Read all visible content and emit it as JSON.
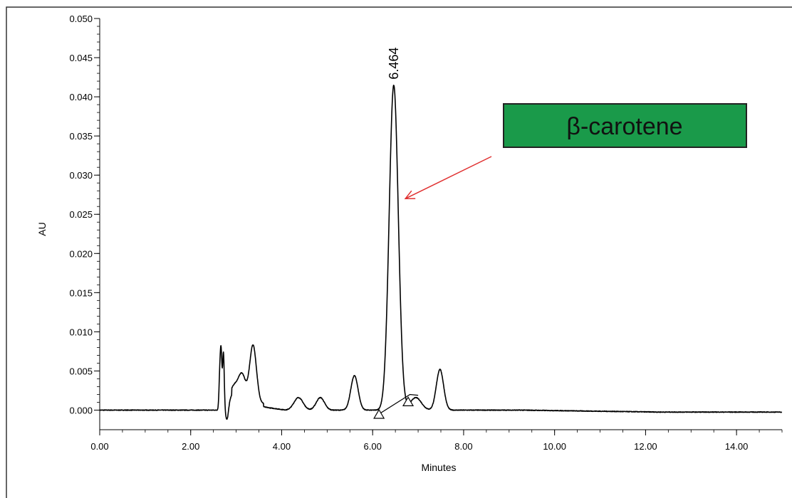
{
  "chart_data": {
    "type": "line",
    "xlabel": "Minutes",
    "ylabel": "AU",
    "xlim": [
      0,
      15
    ],
    "ylim": [
      -0.0025,
      0.05
    ],
    "x_ticks": [
      0,
      2,
      4,
      6,
      8,
      10,
      12,
      14
    ],
    "x_tick_labels": [
      "0.00",
      "2.00",
      "4.00",
      "6.00",
      "8.00",
      "10.00",
      "12.00",
      "14.00"
    ],
    "y_ticks": [
      0,
      0.005,
      0.01,
      0.015,
      0.02,
      0.025,
      0.03,
      0.035,
      0.04,
      0.045,
      0.05
    ],
    "y_tick_labels": [
      "0.000",
      "0.005",
      "0.010",
      "0.015",
      "0.020",
      "0.025",
      "0.030",
      "0.035",
      "0.040",
      "0.045",
      "0.050"
    ],
    "grid": false,
    "baseline_y": 0.0,
    "peaks": [
      {
        "x": 2.64,
        "y": 0.0042,
        "w": 0.018
      },
      {
        "x": 2.67,
        "y": 0.0068,
        "w": 0.018
      },
      {
        "x": 2.72,
        "y": 0.0072,
        "w": 0.018
      },
      {
        "x": 2.8,
        "y": -0.0017,
        "w": 0.03
      },
      {
        "x": 2.95,
        "y": 0.0022,
        "w": 0.09
      },
      {
        "x": 3.13,
        "y": 0.0036,
        "w": 0.08
      },
      {
        "x": 3.37,
        "y": 0.0075,
        "w": 0.075
      },
      {
        "x": 4.37,
        "y": 0.0016,
        "w": 0.1
      },
      {
        "x": 4.85,
        "y": 0.0016,
        "w": 0.09
      },
      {
        "x": 5.6,
        "y": 0.0044,
        "w": 0.08
      },
      {
        "x": 6.464,
        "y": 0.0415,
        "w": 0.1
      },
      {
        "x": 6.95,
        "y": 0.0016,
        "w": 0.12
      },
      {
        "x": 7.48,
        "y": 0.0052,
        "w": 0.08
      }
    ],
    "integration_baseline": [
      [
        6.14,
        -0.0005
      ],
      [
        6.82,
        0.002
      ],
      [
        7.0,
        0.0019
      ]
    ],
    "integration_markers": [
      {
        "x": 6.14,
        "y": -0.0005
      },
      {
        "x": 6.78,
        "y": 0.0011
      }
    ],
    "peak_label": {
      "x": 6.464,
      "y": 0.0415,
      "text": "6.464"
    },
    "annotation": {
      "text": "β-carotene",
      "box_color": "#1a9a4a",
      "arrow_color": "#e03030",
      "arrow_target": {
        "x": 6.72,
        "y": 0.027
      }
    },
    "series": [
      {
        "line_color": "#000000"
      }
    ]
  }
}
